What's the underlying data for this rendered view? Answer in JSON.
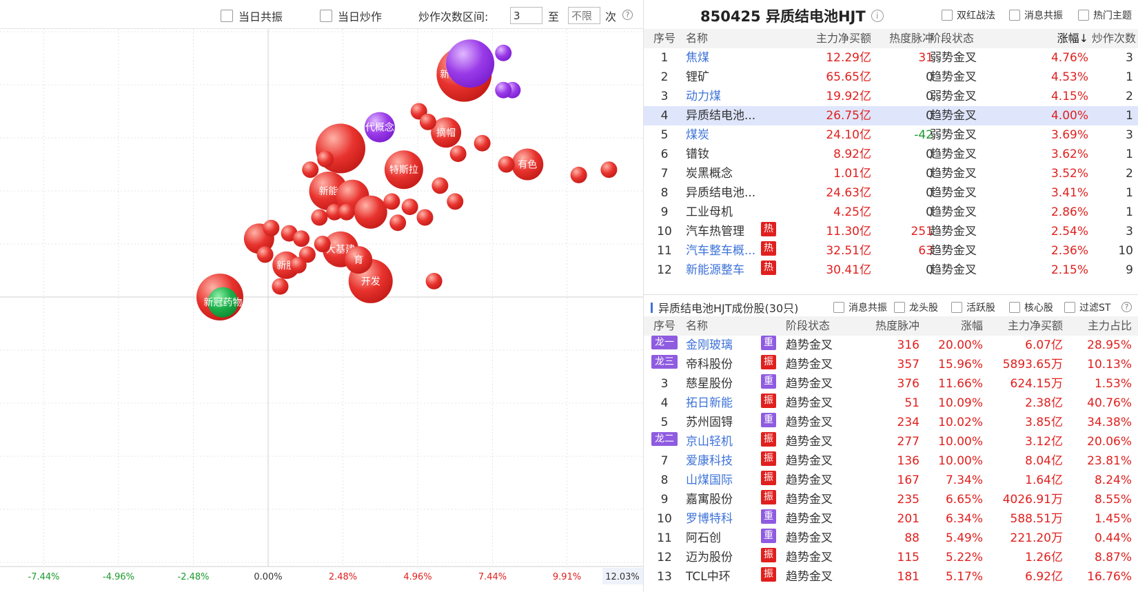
{
  "toolbar": {
    "same_day_resonance": "当日共振",
    "same_day_hype": "当日炒作",
    "hype_count_range_label": "炒作次数区间:",
    "range_min_value": "3",
    "to_label": "至",
    "range_max_placeholder": "不限",
    "times_label": "次",
    "help_icon": "?"
  },
  "bubble_chart": {
    "x_ticks": [
      "-7.44%",
      "-4.96%",
      "-2.48%",
      "0.00%",
      "2.48%",
      "4.96%",
      "7.44%",
      "9.91%"
    ],
    "x_max_label": "12.03%",
    "colors": {
      "red": "#e8332e",
      "purple": "#9a3be8",
      "green": "#1db04a"
    },
    "bubbles": [
      {
        "label": "",
        "x": 9.6,
        "y": 7.8,
        "size": 13,
        "color": "red"
      },
      {
        "label": "",
        "x": 8.1,
        "y": 6.9,
        "size": 13,
        "color": "red"
      },
      {
        "label": "",
        "x": 6.7,
        "y": 4.4,
        "size": 35,
        "color": "purple"
      },
      {
        "label": "新能源整车",
        "x": 6.5,
        "y": 4.2,
        "size": 40,
        "color": "red"
      },
      {
        "label": "",
        "x": 7.8,
        "y": 4.6,
        "size": 12,
        "color": "purple"
      },
      {
        "label": "",
        "x": 8.1,
        "y": 3.9,
        "size": 12,
        "color": "purple"
      },
      {
        "label": "",
        "x": 7.8,
        "y": 3.9,
        "size": 12,
        "color": "purple"
      },
      {
        "label": "有色",
        "x": 8.6,
        "y": 2.5,
        "size": 23,
        "color": "red"
      },
      {
        "label": "",
        "x": 7.9,
        "y": 2.5,
        "size": 12,
        "color": "red"
      },
      {
        "label": "",
        "x": 10.3,
        "y": 2.3,
        "size": 12,
        "color": "red"
      },
      {
        "label": "",
        "x": 11.3,
        "y": 2.4,
        "size": 12,
        "color": "red"
      },
      {
        "label": "摘帽",
        "x": 5.9,
        "y": 3.1,
        "size": 22,
        "color": "red"
      },
      {
        "label": "",
        "x": 7.1,
        "y": 2.9,
        "size": 12,
        "color": "red"
      },
      {
        "label": "",
        "x": 6.3,
        "y": 2.7,
        "size": 12,
        "color": "red"
      },
      {
        "label": "",
        "x": 6.2,
        "y": 1.8,
        "size": 12,
        "color": "red"
      },
      {
        "label": "",
        "x": 5.0,
        "y": 3.5,
        "size": 12,
        "color": "red"
      },
      {
        "label": "",
        "x": 5.3,
        "y": 3.3,
        "size": 12,
        "color": "red"
      },
      {
        "label": "代概念",
        "x": 3.7,
        "y": 3.2,
        "size": 22,
        "color": "purple"
      },
      {
        "label": "特斯拉",
        "x": 4.5,
        "y": 2.4,
        "size": 28,
        "color": "red"
      },
      {
        "label": "",
        "x": 5.7,
        "y": 2.1,
        "size": 12,
        "color": "red"
      },
      {
        "label": "",
        "x": 2.4,
        "y": 2.8,
        "size": 36,
        "color": "red"
      },
      {
        "label": "新能",
        "x": 2.0,
        "y": 2.0,
        "size": 28,
        "color": "red"
      },
      {
        "label": "",
        "x": 2.8,
        "y": 1.9,
        "size": 24,
        "color": "red"
      },
      {
        "label": "",
        "x": 1.4,
        "y": 2.4,
        "size": 12,
        "color": "red"
      },
      {
        "label": "",
        "x": 1.9,
        "y": 2.6,
        "size": 12,
        "color": "red"
      },
      {
        "label": "",
        "x": 3.4,
        "y": 1.6,
        "size": 24,
        "color": "red"
      },
      {
        "label": "",
        "x": 4.1,
        "y": 1.8,
        "size": 12,
        "color": "red"
      },
      {
        "label": "",
        "x": 4.7,
        "y": 1.7,
        "size": 12,
        "color": "red"
      },
      {
        "label": "",
        "x": 5.2,
        "y": 1.5,
        "size": 12,
        "color": "red"
      },
      {
        "label": "",
        "x": 2.2,
        "y": 1.6,
        "size": 12,
        "color": "red"
      },
      {
        "label": "",
        "x": 2.6,
        "y": 1.6,
        "size": 12,
        "color": "red"
      },
      {
        "label": "大基建",
        "x": 2.4,
        "y": 0.9,
        "size": 26,
        "color": "red"
      },
      {
        "label": "育",
        "x": 3.0,
        "y": 0.7,
        "size": 20,
        "color": "red"
      },
      {
        "label": "开发",
        "x": 3.4,
        "y": 0.3,
        "size": 32,
        "color": "red"
      },
      {
        "label": "",
        "x": 4.3,
        "y": 1.4,
        "size": 12,
        "color": "red"
      },
      {
        "label": "",
        "x": 1.7,
        "y": 1.5,
        "size": 12,
        "color": "red"
      },
      {
        "label": "",
        "x": 1.8,
        "y": 1.0,
        "size": 12,
        "color": "red"
      },
      {
        "label": "",
        "x": 1.3,
        "y": 0.8,
        "size": 12,
        "color": "red"
      },
      {
        "label": "",
        "x": 1.0,
        "y": 0.6,
        "size": 12,
        "color": "red"
      },
      {
        "label": "新股",
        "x": 0.6,
        "y": 0.6,
        "size": 20,
        "color": "red"
      },
      {
        "label": "",
        "x": -0.3,
        "y": 1.1,
        "size": 22,
        "color": "red"
      },
      {
        "label": "",
        "x": 0.1,
        "y": 1.3,
        "size": 12,
        "color": "red"
      },
      {
        "label": "",
        "x": 0.7,
        "y": 1.2,
        "size": 12,
        "color": "red"
      },
      {
        "label": "",
        "x": 1.1,
        "y": 1.1,
        "size": 12,
        "color": "red"
      },
      {
        "label": "",
        "x": -0.1,
        "y": 0.8,
        "size": 12,
        "color": "red"
      },
      {
        "label": "",
        "x": 0.4,
        "y": 0.2,
        "size": 12,
        "color": "red"
      },
      {
        "label": "",
        "x": 5.5,
        "y": 0.3,
        "size": 12,
        "color": "red"
      },
      {
        "label": "",
        "x": -1.6,
        "y": 0.0,
        "size": 34,
        "color": "red"
      },
      {
        "label": "新冠药物",
        "x": -1.5,
        "y": -0.1,
        "size": 22,
        "color": "green"
      }
    ]
  },
  "sector_header": {
    "title": "850425 异质结电池HJT",
    "filters": [
      "双红战法",
      "消息共振",
      "热门主题"
    ]
  },
  "sector_table": {
    "columns": [
      "序号",
      "名称",
      "主力净买额",
      "热度脉冲",
      "阶段状态",
      "涨幅↓",
      "炒作次数"
    ],
    "rows": [
      {
        "no": "1",
        "name": "焦煤",
        "net": "12.29亿",
        "heat": "31",
        "stage": "弱势金叉",
        "chg": "4.76%",
        "count": "3",
        "link": true,
        "hot": ""
      },
      {
        "no": "2",
        "name": "锂矿",
        "net": "65.65亿",
        "heat": "0",
        "stage": "趋势金叉",
        "chg": "4.53%",
        "count": "1",
        "link": false,
        "hot": ""
      },
      {
        "no": "3",
        "name": "动力煤",
        "net": "19.92亿",
        "heat": "0",
        "stage": "弱势金叉",
        "chg": "4.15%",
        "count": "2",
        "link": true,
        "hot": ""
      },
      {
        "no": "4",
        "name": "异质结电池...",
        "net": "26.75亿",
        "heat": "0",
        "stage": "趋势金叉",
        "chg": "4.00%",
        "count": "1",
        "link": false,
        "hot": "",
        "selected": true
      },
      {
        "no": "5",
        "name": "煤炭",
        "net": "24.10亿",
        "heat": "-42",
        "stage": "弱势金叉",
        "chg": "3.69%",
        "count": "3",
        "link": true,
        "hot": ""
      },
      {
        "no": "6",
        "name": "镨钕",
        "net": "8.92亿",
        "heat": "0",
        "stage": "趋势金叉",
        "chg": "3.62%",
        "count": "1",
        "link": false,
        "hot": ""
      },
      {
        "no": "7",
        "name": "炭黑概念",
        "net": "1.01亿",
        "heat": "0",
        "stage": "趋势金叉",
        "chg": "3.52%",
        "count": "2",
        "link": false,
        "hot": ""
      },
      {
        "no": "8",
        "name": "异质结电池...",
        "net": "24.63亿",
        "heat": "0",
        "stage": "趋势金叉",
        "chg": "3.41%",
        "count": "1",
        "link": false,
        "hot": ""
      },
      {
        "no": "9",
        "name": "工业母机",
        "net": "4.25亿",
        "heat": "0",
        "stage": "趋势金叉",
        "chg": "2.86%",
        "count": "1",
        "link": false,
        "hot": ""
      },
      {
        "no": "10",
        "name": "汽车热管理",
        "net": "11.30亿",
        "heat": "251",
        "stage": "趋势金叉",
        "chg": "2.54%",
        "count": "3",
        "link": false,
        "hot": "热"
      },
      {
        "no": "11",
        "name": "汽车整车概...",
        "net": "32.51亿",
        "heat": "63",
        "stage": "趋势金叉",
        "chg": "2.36%",
        "count": "10",
        "link": true,
        "hot": "热"
      },
      {
        "no": "12",
        "name": "新能源整车",
        "net": "30.41亿",
        "heat": "0",
        "stage": "趋势金叉",
        "chg": "2.15%",
        "count": "9",
        "link": true,
        "hot": "热"
      }
    ]
  },
  "constituents_header": {
    "title": "异质结电池HJT成份股(30只)",
    "filters": [
      "消息共振",
      "龙头股",
      "活跃股",
      "核心股",
      "过滤ST"
    ]
  },
  "constituents_table": {
    "columns": [
      "序号",
      "名称",
      "阶段状态",
      "热度脉冲",
      "涨幅",
      "主力净买额",
      "主力占比"
    ],
    "rows": [
      {
        "no": "1",
        "rank": "龙一",
        "name": "金刚玻璃",
        "tag": "重",
        "stage": "趋势金叉",
        "heat": "316",
        "chg": "20.00%",
        "net": "6.07亿",
        "ratio": "28.95%",
        "link": true
      },
      {
        "no": "2",
        "rank": "龙三",
        "name": "帝科股份",
        "tag": "振",
        "stage": "趋势金叉",
        "heat": "357",
        "chg": "15.96%",
        "net": "5893.65万",
        "ratio": "10.13%",
        "link": false
      },
      {
        "no": "3",
        "rank": "",
        "name": "慈星股份",
        "tag": "重",
        "stage": "趋势金叉",
        "heat": "376",
        "chg": "11.66%",
        "net": "624.15万",
        "ratio": "1.53%",
        "link": false
      },
      {
        "no": "4",
        "rank": "",
        "name": "拓日新能",
        "tag": "振",
        "stage": "趋势金叉",
        "heat": "51",
        "chg": "10.09%",
        "net": "2.38亿",
        "ratio": "40.76%",
        "link": true
      },
      {
        "no": "5",
        "rank": "",
        "name": "苏州固锝",
        "tag": "重",
        "stage": "趋势金叉",
        "heat": "234",
        "chg": "10.02%",
        "net": "3.85亿",
        "ratio": "34.38%",
        "link": false
      },
      {
        "no": "6",
        "rank": "龙二",
        "name": "京山轻机",
        "tag": "振",
        "stage": "趋势金叉",
        "heat": "277",
        "chg": "10.00%",
        "net": "3.12亿",
        "ratio": "20.06%",
        "link": true
      },
      {
        "no": "7",
        "rank": "",
        "name": "爱康科技",
        "tag": "振",
        "stage": "趋势金叉",
        "heat": "136",
        "chg": "10.00%",
        "net": "8.04亿",
        "ratio": "23.81%",
        "link": true
      },
      {
        "no": "8",
        "rank": "",
        "name": "山煤国际",
        "tag": "振",
        "stage": "趋势金叉",
        "heat": "167",
        "chg": "7.34%",
        "net": "1.64亿",
        "ratio": "8.24%",
        "link": true
      },
      {
        "no": "9",
        "rank": "",
        "name": "嘉寓股份",
        "tag": "振",
        "stage": "趋势金叉",
        "heat": "235",
        "chg": "6.65%",
        "net": "4026.91万",
        "ratio": "8.55%",
        "link": false
      },
      {
        "no": "10",
        "rank": "",
        "name": "罗博特科",
        "tag": "重",
        "stage": "趋势金叉",
        "heat": "201",
        "chg": "6.34%",
        "net": "588.51万",
        "ratio": "1.45%",
        "link": true
      },
      {
        "no": "11",
        "rank": "",
        "name": "阿石创",
        "tag": "重",
        "stage": "趋势金叉",
        "heat": "88",
        "chg": "5.49%",
        "net": "221.20万",
        "ratio": "0.44%",
        "link": false
      },
      {
        "no": "12",
        "rank": "",
        "name": "迈为股份",
        "tag": "振",
        "stage": "趋势金叉",
        "heat": "115",
        "chg": "5.22%",
        "net": "1.26亿",
        "ratio": "8.87%",
        "link": false
      },
      {
        "no": "13",
        "rank": "",
        "name": "TCL中环",
        "tag": "振",
        "stage": "趋势金叉",
        "heat": "181",
        "chg": "5.17%",
        "net": "6.92亿",
        "ratio": "16.76%",
        "link": false
      }
    ]
  }
}
